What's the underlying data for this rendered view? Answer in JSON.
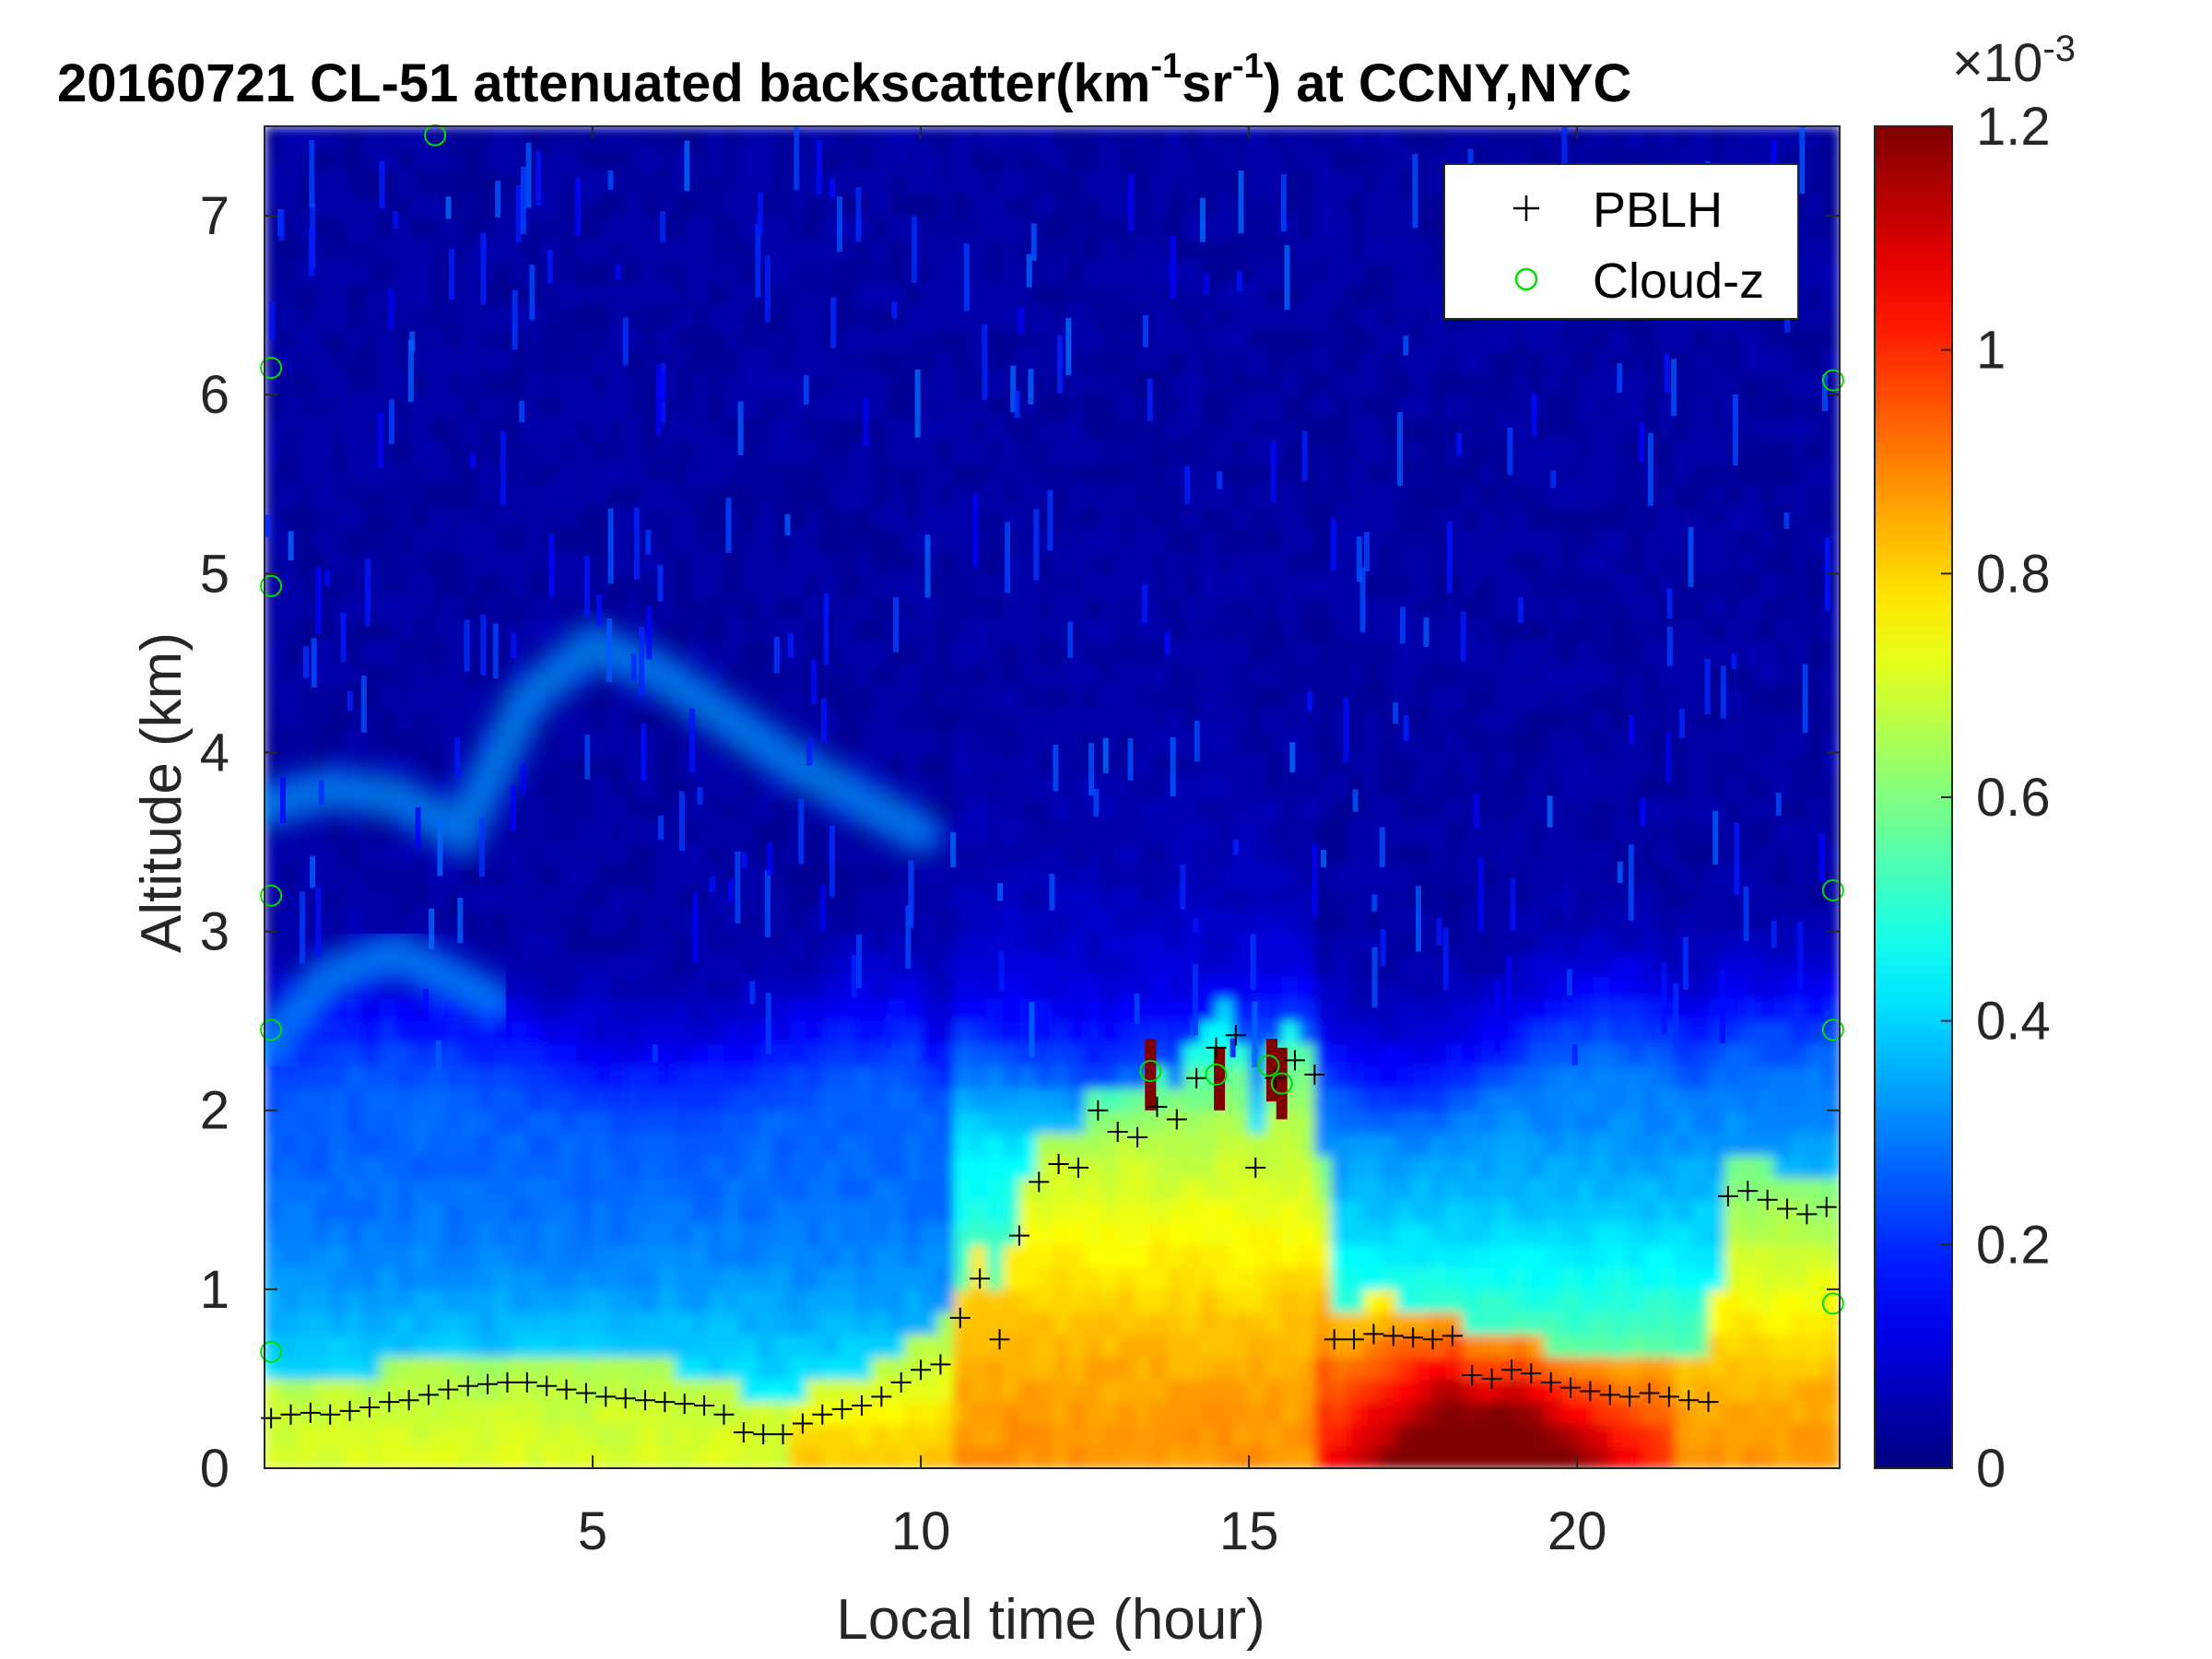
{
  "chart_data": {
    "type": "heatmap",
    "title": {
      "prefix": "20160721  CL-51 attenuated backscatter(km",
      "sup1": "-1",
      "mid": "sr",
      "sup2": "-1",
      "suffix": ") at CCNY,NYC"
    },
    "xlabel": "Local time (hour)",
    "ylabel": "Altitude (km)",
    "xlim": [
      0,
      24
    ],
    "ylim": [
      0,
      7.5
    ],
    "xticks": [
      5,
      10,
      15,
      20
    ],
    "yticks": [
      0,
      1,
      2,
      3,
      4,
      5,
      6,
      7
    ],
    "colorbar": {
      "colormap": "jet",
      "clim": [
        0,
        1.2
      ],
      "ticks": [
        0,
        0.2,
        0.4,
        0.6,
        0.8,
        1,
        1.2
      ],
      "tick_labels": [
        "0",
        "0.2",
        "0.4",
        "0.6",
        "0.8",
        "1",
        "1.2"
      ],
      "exponent_base": "×10",
      "exponent": "-3"
    },
    "legend": {
      "location": "top-right",
      "entries": [
        {
          "label": "PBLH",
          "marker": "+",
          "color": "#000000"
        },
        {
          "label": "Cloud-z",
          "marker": "o",
          "color": "#00dd00"
        }
      ]
    },
    "pblh": {
      "x": [
        0.1,
        0.4,
        0.7,
        1.0,
        1.3,
        1.6,
        1.9,
        2.2,
        2.5,
        2.8,
        3.1,
        3.4,
        3.7,
        4.0,
        4.3,
        4.6,
        4.9,
        5.2,
        5.5,
        5.8,
        6.1,
        6.4,
        6.7,
        7.0,
        7.3,
        7.6,
        7.9,
        8.2,
        8.5,
        8.8,
        9.1,
        9.4,
        9.7,
        10.0,
        10.3,
        10.6,
        10.9,
        11.2,
        11.5,
        11.8,
        12.1,
        12.4,
        12.7,
        13.0,
        13.3,
        13.6,
        13.9,
        14.2,
        14.5,
        14.8,
        15.1,
        15.4,
        15.7,
        16.0,
        16.3,
        16.6,
        16.9,
        17.2,
        17.5,
        17.8,
        18.1,
        18.4,
        18.7,
        19.0,
        19.3,
        19.6,
        19.9,
        20.2,
        20.5,
        20.8,
        21.1,
        21.4,
        21.7,
        22.0,
        22.3,
        22.6,
        22.9,
        23.2,
        23.5,
        23.8
      ],
      "y": [
        0.28,
        0.3,
        0.31,
        0.3,
        0.32,
        0.34,
        0.37,
        0.38,
        0.41,
        0.44,
        0.46,
        0.47,
        0.48,
        0.48,
        0.46,
        0.44,
        0.42,
        0.4,
        0.39,
        0.38,
        0.37,
        0.36,
        0.35,
        0.3,
        0.2,
        0.19,
        0.19,
        0.25,
        0.3,
        0.33,
        0.35,
        0.4,
        0.48,
        0.55,
        0.58,
        0.84,
        1.06,
        0.72,
        1.3,
        1.6,
        1.7,
        1.68,
        2.0,
        1.88,
        1.85,
        2.02,
        1.95,
        2.18,
        2.35,
        2.42,
        1.68,
        2.18,
        2.28,
        2.2,
        0.72,
        0.72,
        0.75,
        0.74,
        0.73,
        0.72,
        0.74,
        0.52,
        0.5,
        0.55,
        0.53,
        0.48,
        0.45,
        0.43,
        0.41,
        0.4,
        0.42,
        0.4,
        0.38,
        0.37,
        1.52,
        1.55,
        1.5,
        1.45,
        1.42,
        1.46
      ]
    },
    "cloud_z": {
      "x": [
        0.1,
        0.1,
        0.1,
        0.1,
        0.1,
        2.6,
        13.5,
        14.5,
        15.3,
        15.5,
        23.9,
        23.9,
        23.9,
        23.9
      ],
      "y": [
        6.15,
        4.93,
        3.2,
        2.45,
        0.65,
        7.45,
        2.22,
        2.2,
        2.25,
        2.15,
        6.08,
        3.23,
        2.45,
        0.92
      ]
    },
    "aerosol_features": [
      {
        "name": "residual-layer-upper",
        "t": [
          0,
          1,
          2,
          3,
          4,
          5,
          6,
          7,
          8,
          9,
          10
        ],
        "z": [
          3.7,
          3.8,
          3.75,
          3.55,
          4.3,
          4.6,
          4.45,
          4.2,
          3.95,
          3.75,
          3.55
        ]
      },
      {
        "name": "residual-layer-lower",
        "t": [
          0,
          1,
          2,
          3,
          3.5
        ],
        "z": [
          2.35,
          2.75,
          2.88,
          2.7,
          2.6
        ]
      }
    ]
  }
}
